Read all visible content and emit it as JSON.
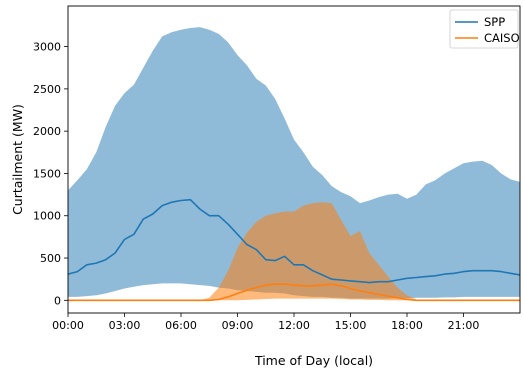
{
  "chart_data": {
    "type": "line",
    "title": "",
    "xlabel": "Time of Day (local)",
    "ylabel": "Curtailment (MW)",
    "xlim": [
      0,
      24
    ],
    "ylim": [
      -150,
      3480
    ],
    "x_ticks": [
      {
        "value": 0,
        "label": "00:00"
      },
      {
        "value": 3,
        "label": "03:00"
      },
      {
        "value": 6,
        "label": "06:00"
      },
      {
        "value": 9,
        "label": "09:00"
      },
      {
        "value": 12,
        "label": "12:00"
      },
      {
        "value": 15,
        "label": "15:00"
      },
      {
        "value": 18,
        "label": "18:00"
      },
      {
        "value": 21,
        "label": "21:00"
      }
    ],
    "y_ticks": [
      {
        "value": 0,
        "label": "0"
      },
      {
        "value": 500,
        "label": "500"
      },
      {
        "value": 1000,
        "label": "1000"
      },
      {
        "value": 1500,
        "label": "1500"
      },
      {
        "value": 2000,
        "label": "2000"
      },
      {
        "value": 2500,
        "label": "2500"
      },
      {
        "value": 3000,
        "label": "3000"
      }
    ],
    "grid": false,
    "legend_position": "top-right",
    "series": [
      {
        "name": "SPP",
        "color": "#1f77b4",
        "band_color": "#1f77b4",
        "x": [
          0,
          0.5,
          1,
          1.5,
          2,
          2.5,
          3,
          3.5,
          4,
          4.5,
          5,
          5.5,
          6,
          6.5,
          7,
          7.5,
          8,
          8.5,
          9,
          9.5,
          10,
          10.5,
          11,
          11.5,
          12,
          12.5,
          13,
          13.5,
          14,
          14.5,
          15,
          15.5,
          16,
          16.5,
          17,
          17.5,
          18,
          18.5,
          19,
          19.5,
          20,
          20.5,
          21,
          21.5,
          22,
          22.5,
          23,
          23.5,
          24
        ],
        "mean": [
          310,
          340,
          420,
          440,
          480,
          560,
          720,
          780,
          960,
          1020,
          1120,
          1160,
          1180,
          1190,
          1080,
          1000,
          1000,
          900,
          780,
          660,
          600,
          480,
          470,
          520,
          420,
          420,
          350,
          300,
          250,
          240,
          230,
          220,
          210,
          220,
          220,
          240,
          260,
          270,
          280,
          290,
          310,
          320,
          340,
          350,
          350,
          350,
          340,
          320,
          300
        ],
        "upper": [
          1300,
          1420,
          1550,
          1750,
          2050,
          2300,
          2450,
          2550,
          2750,
          2950,
          3120,
          3170,
          3200,
          3220,
          3230,
          3200,
          3150,
          3050,
          2900,
          2780,
          2620,
          2540,
          2380,
          2150,
          1900,
          1750,
          1580,
          1480,
          1350,
          1280,
          1230,
          1150,
          1180,
          1220,
          1250,
          1260,
          1200,
          1250,
          1370,
          1420,
          1500,
          1560,
          1620,
          1640,
          1650,
          1600,
          1500,
          1430,
          1400
        ],
        "lower": [
          40,
          40,
          50,
          60,
          80,
          110,
          140,
          160,
          180,
          190,
          200,
          200,
          200,
          190,
          180,
          170,
          150,
          140,
          120,
          110,
          100,
          90,
          90,
          80,
          60,
          50,
          40,
          40,
          30,
          30,
          20,
          20,
          20,
          20,
          20,
          25,
          25,
          30,
          30,
          30,
          35,
          35,
          40,
          40,
          40,
          40,
          40,
          40,
          40
        ]
      },
      {
        "name": "CAISO",
        "color": "#ff7f0e",
        "band_color": "#ff7f0e",
        "x": [
          0,
          7,
          7.5,
          8,
          8.5,
          9,
          9.5,
          10,
          10.5,
          11,
          11.5,
          12,
          12.5,
          13,
          13.5,
          14,
          14.5,
          15,
          15.5,
          16,
          16.5,
          17,
          17.5,
          18,
          18.5,
          19,
          24
        ],
        "mean": [
          0,
          0,
          0,
          10,
          40,
          80,
          120,
          150,
          180,
          190,
          190,
          180,
          170,
          170,
          180,
          190,
          170,
          140,
          110,
          90,
          70,
          50,
          30,
          10,
          0,
          0,
          0
        ],
        "upper": [
          0,
          0,
          30,
          150,
          350,
          620,
          800,
          930,
          1000,
          1030,
          1050,
          1050,
          1120,
          1150,
          1160,
          1150,
          950,
          760,
          820,
          560,
          420,
          280,
          150,
          60,
          10,
          0,
          0
        ],
        "lower": [
          0,
          0,
          0,
          0,
          0,
          0,
          5,
          10,
          15,
          20,
          20,
          20,
          20,
          20,
          20,
          20,
          15,
          10,
          10,
          5,
          5,
          0,
          0,
          0,
          0,
          0,
          0
        ]
      }
    ]
  }
}
